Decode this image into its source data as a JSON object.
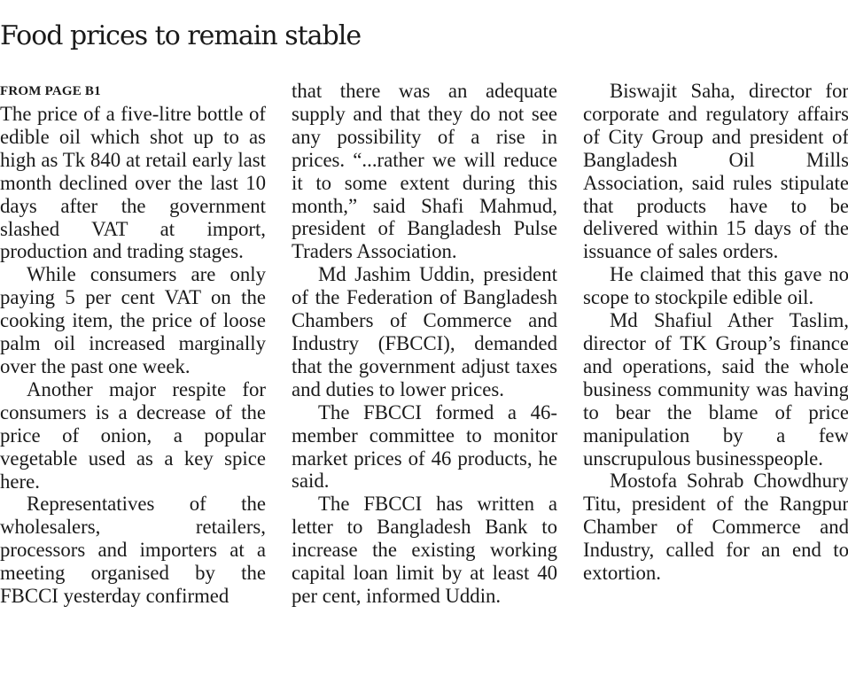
{
  "article": {
    "headline": "Food prices to remain stable",
    "kicker": "FROM PAGE B1",
    "columns": [
      [
        "The price of a five-litre bottle of edible oil which shot up to as high as Tk 840 at retail early last month declined over the last 10 days after the government slashed VAT at import, production and trading stages.",
        "While consumers are only paying 5 per cent VAT on the cooking item, the price of loose palm oil increased marginally over the past one week.",
        "Another major respite for consumers is a decrease of the price of onion, a popular vegetable used as a key spice here.",
        "Representatives of the wholesalers, retailers, processors and importers at a meeting organised by the FBCCI yesterday confirmed"
      ],
      [
        "that there was an adequate supply and that they do not see any possibility of a rise in prices. “...rather we will reduce it to some extent during this month,” said Shafi Mahmud, president of Bangladesh Pulse Traders Association.",
        "Md Jashim Uddin, president of the Federation of Bangladesh Chambers of Commerce and Industry (FBCCI), demanded that the government adjust taxes and duties to lower prices.",
        "The FBCCI formed a 46-member committee to monitor market prices of 46 products, he said.",
        "The FBCCI has written a letter to Bangladesh Bank to increase the existing working capital loan limit by at least 40 per cent, informed Uddin."
      ],
      [
        "Biswajit Saha, director for corporate and regulatory affairs of City Group and president of Bangladesh Oil Mills Association, said rules stipulate that products have to be delivered within 15 days of the issuance of sales orders.",
        "He claimed that this gave no scope to stockpile edible oil.",
        "Md Shafiul Ather Taslim, director of TK Group’s finance and operations, said the whole business community was having to bear the blame of price manipulation by a few unscrupulous businesspeople.",
        "Mostofa Sohrab Chowdhury Titu, president of the Rangpur Chamber of Commerce and Industry, called for an end to extortion."
      ]
    ]
  }
}
